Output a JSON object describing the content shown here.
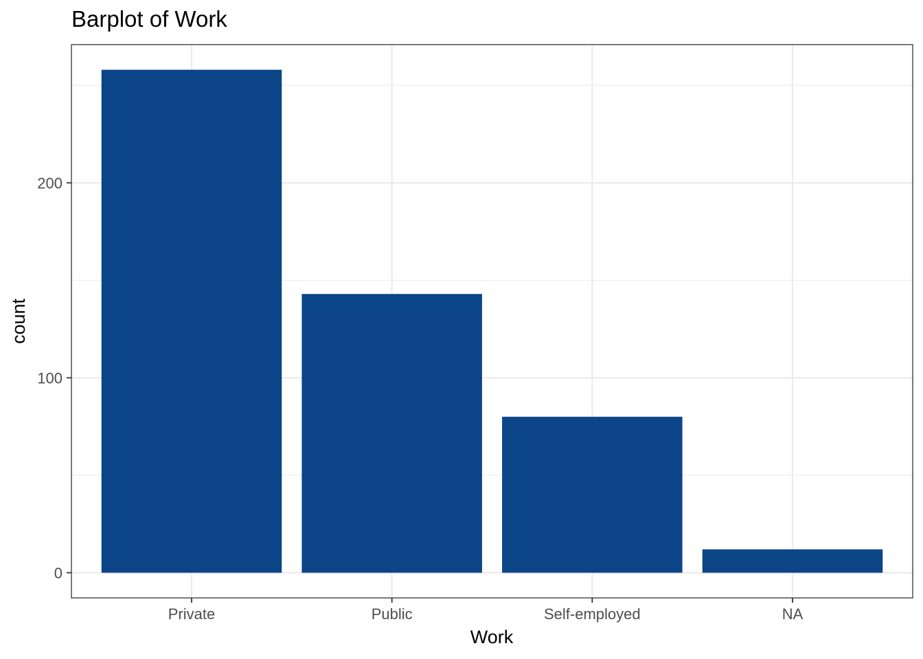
{
  "chart_data": {
    "type": "bar",
    "title": "Barplot of Work",
    "xlabel": "Work",
    "ylabel": "count",
    "categories": [
      "Private",
      "Public",
      "Self-employed",
      "NA"
    ],
    "values": [
      258,
      143,
      80,
      12
    ],
    "ylim": [
      -12.9,
      270.9
    ],
    "yticks": [
      0,
      100,
      200
    ],
    "ytick_labels": [
      "0",
      "100",
      "200"
    ],
    "y_minor_ticks": [
      50,
      150,
      250
    ],
    "grid": true,
    "legend": "none",
    "bar_color": "#0b4587"
  }
}
